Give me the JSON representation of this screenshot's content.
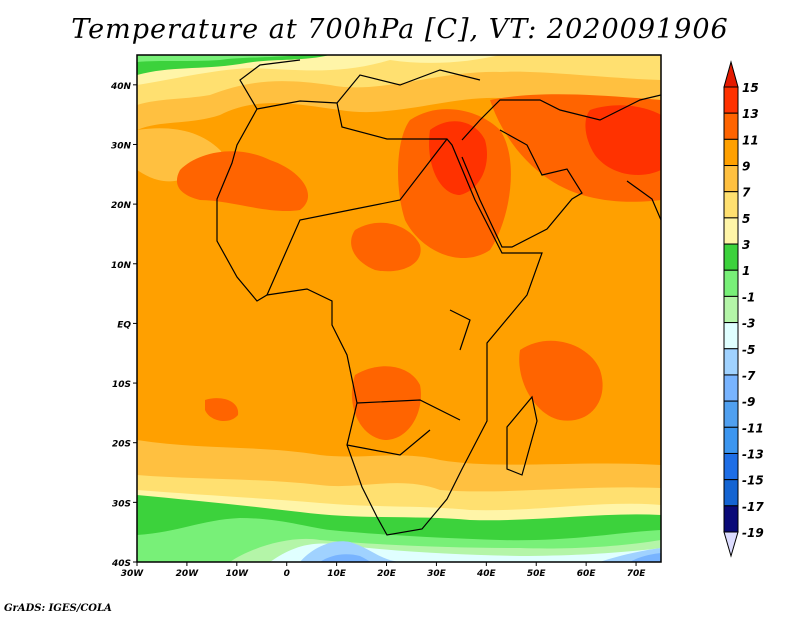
{
  "title": "Temperature at 700hPa [C], VT: 2020091906",
  "footer": "GrADS: IGES/COLA",
  "lat_ticks": [
    {
      "label": "40N",
      "lat": 40
    },
    {
      "label": "30N",
      "lat": 30
    },
    {
      "label": "20N",
      "lat": 20
    },
    {
      "label": "10N",
      "lat": 10
    },
    {
      "label": "EQ",
      "lat": 0
    },
    {
      "label": "10S",
      "lat": -10
    },
    {
      "label": "20S",
      "lat": -20
    },
    {
      "label": "30S",
      "lat": -30
    },
    {
      "label": "40S",
      "lat": -40
    }
  ],
  "lon_ticks": [
    {
      "label": "30W",
      "lon": -30
    },
    {
      "label": "20W",
      "lon": -20
    },
    {
      "label": "10W",
      "lon": -10
    },
    {
      "label": "0",
      "lon": 0
    },
    {
      "label": "10E",
      "lon": 10
    },
    {
      "label": "20E",
      "lon": 20
    },
    {
      "label": "30E",
      "lon": 30
    },
    {
      "label": "40E",
      "lon": 40
    },
    {
      "label": "50E",
      "lon": 50
    },
    {
      "label": "60E",
      "lon": 60
    },
    {
      "label": "70E",
      "lon": 70
    }
  ],
  "map_extent": {
    "lon": [
      -30,
      75
    ],
    "lat": [
      -40,
      45
    ]
  },
  "colorbar": {
    "labels": [
      "15",
      "13",
      "11",
      "9",
      "7",
      "5",
      "3",
      "1",
      "-1",
      "-3",
      "-5",
      "-7",
      "-9",
      "-11",
      "-13",
      "-15",
      "-17",
      "-19"
    ],
    "over_color": "#e41a00",
    "under_color": "#dcdcff",
    "colors": [
      "#ff3200",
      "#ff6400",
      "#ffa000",
      "#ffc040",
      "#ffe070",
      "#fff5a8",
      "#3cd23c",
      "#78f078",
      "#b4f5a8",
      "#e0ffff",
      "#a0d2ff",
      "#78b4ff",
      "#50a0f0",
      "#3c96f0",
      "#1e6ee6",
      "#1464d2",
      "#0a0a78"
    ]
  }
}
